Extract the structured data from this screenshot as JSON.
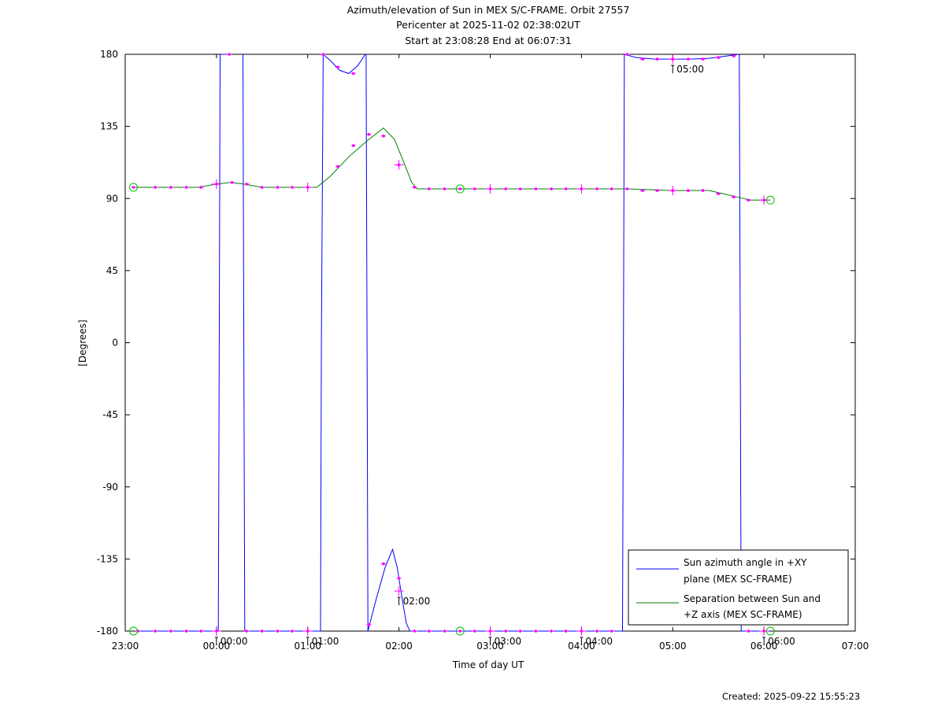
{
  "chart_data": {
    "type": "line",
    "title": "Azimuth/elevation of Sun in MEX S/C-FRAME.  Orbit 27557",
    "subtitle_1": "Pericenter at 2025-11-02 02:38:02UT",
    "subtitle_2": "Start at 23:08:28 End at 06:07:31",
    "xlabel": "Time of day UT",
    "ylabel": "[Degrees]",
    "x_unit": "hours since 23:00 UT",
    "xlim": [
      0,
      8
    ],
    "ylim": [
      -180,
      180
    ],
    "x_ticks": [
      {
        "v": 0,
        "label": "23:00"
      },
      {
        "v": 1,
        "label": "00:00"
      },
      {
        "v": 2,
        "label": "01:00"
      },
      {
        "v": 3,
        "label": "02:00"
      },
      {
        "v": 4,
        "label": "03:00"
      },
      {
        "v": 5,
        "label": "04:00"
      },
      {
        "v": 6,
        "label": "05:00"
      },
      {
        "v": 7,
        "label": "06:00"
      },
      {
        "v": 8,
        "label": "07:00"
      }
    ],
    "y_ticks": [
      {
        "v": 180,
        "label": "180"
      },
      {
        "v": 135,
        "label": "135"
      },
      {
        "v": 90,
        "label": "90"
      },
      {
        "v": 45,
        "label": "45"
      },
      {
        "v": 0,
        "label": "0"
      },
      {
        "v": -45,
        "label": "-45"
      },
      {
        "v": -90,
        "label": "-90"
      },
      {
        "v": -135,
        "label": "-135"
      },
      {
        "v": -180,
        "label": "-180"
      }
    ],
    "legend_position": "bottom-right",
    "series": [
      {
        "name": "Sun azimuth angle in +XY plane (MEX SC-FRAME)",
        "legend_lines": [
          "Sun azimuth angle in +XY",
          "plane (MEX SC-FRAME)"
        ],
        "color": "#0000ff",
        "segments": [
          [
            [
              0.14,
              -180
            ],
            [
              0.5,
              -180
            ],
            [
              0.9,
              -180
            ],
            [
              1.02,
              -180
            ],
            [
              1.03,
              0
            ],
            [
              1.04,
              180
            ],
            [
              1.1,
              180
            ],
            [
              1.14,
              180
            ]
          ],
          [
            [
              1.29,
              180
            ],
            [
              1.3,
              0
            ],
            [
              1.31,
              -180
            ],
            [
              1.6,
              -180
            ],
            [
              2.0,
              -180
            ],
            [
              2.14,
              -180
            ],
            [
              2.15,
              0
            ],
            [
              2.17,
              180
            ],
            [
              2.25,
              176
            ],
            [
              2.35,
              170
            ],
            [
              2.45,
              168
            ],
            [
              2.55,
              173
            ],
            [
              2.63,
              180
            ]
          ],
          [
            [
              2.64,
              180
            ],
            [
              2.65,
              0
            ],
            [
              2.66,
              -180
            ],
            [
              2.75,
              -160
            ],
            [
              2.85,
              -140
            ],
            [
              2.93,
              -129
            ],
            [
              2.98,
              -140
            ],
            [
              3.03,
              -158
            ],
            [
              3.08,
              -175
            ],
            [
              3.12,
              -180
            ],
            [
              3.6,
              -180
            ],
            [
              4.5,
              -180
            ],
            [
              5.2,
              -180
            ],
            [
              5.45,
              -180
            ],
            [
              5.46,
              0
            ],
            [
              5.47,
              180
            ],
            [
              5.6,
              178
            ],
            [
              5.8,
              177
            ],
            [
              6.0,
              177
            ],
            [
              6.2,
              177
            ],
            [
              6.4,
              177.5
            ],
            [
              6.6,
              179
            ],
            [
              6.72,
              180
            ]
          ],
          [
            [
              6.73,
              180
            ],
            [
              6.74,
              0
            ],
            [
              6.75,
              -180
            ],
            [
              6.9,
              -180
            ],
            [
              7.07,
              -180
            ]
          ]
        ],
        "markers": [
          [
            0.14,
            -180
          ],
          [
            0.33,
            -180
          ],
          [
            0.5,
            -180
          ],
          [
            0.67,
            -180
          ],
          [
            0.83,
            -180
          ],
          [
            1.0,
            -180
          ],
          [
            1.14,
            180
          ],
          [
            1.33,
            -180
          ],
          [
            1.5,
            -180
          ],
          [
            1.67,
            -180
          ],
          [
            1.83,
            -180
          ],
          [
            2.0,
            -180
          ],
          [
            2.17,
            180
          ],
          [
            2.33,
            172
          ],
          [
            2.5,
            168
          ],
          [
            2.67,
            -176
          ],
          [
            2.83,
            -138
          ],
          [
            3.0,
            -147
          ],
          [
            3.17,
            -180
          ],
          [
            3.33,
            -180
          ],
          [
            3.5,
            -180
          ],
          [
            3.67,
            -180
          ],
          [
            3.83,
            -180
          ],
          [
            4.0,
            -180
          ],
          [
            4.17,
            -180
          ],
          [
            4.33,
            -180
          ],
          [
            4.5,
            -180
          ],
          [
            4.67,
            -180
          ],
          [
            4.83,
            -180
          ],
          [
            5.0,
            -180
          ],
          [
            5.17,
            -180
          ],
          [
            5.33,
            -180
          ],
          [
            5.5,
            180
          ],
          [
            5.67,
            177
          ],
          [
            5.83,
            177
          ],
          [
            6.0,
            177
          ],
          [
            6.17,
            177
          ],
          [
            6.33,
            177
          ],
          [
            6.5,
            178
          ],
          [
            6.67,
            179
          ],
          [
            6.83,
            -180
          ],
          [
            7.0,
            -180
          ]
        ]
      },
      {
        "name": "Separation between Sun and +Z axis (MEX SC-FRAME)",
        "legend_lines": [
          "Separation between Sun and",
          "+Z axis (MEX SC-FRAME)"
        ],
        "color": "#008000",
        "segments": [
          [
            [
              0.09,
              97
            ],
            [
              0.5,
              97
            ],
            [
              0.8,
              97
            ],
            [
              1.0,
              99
            ],
            [
              1.15,
              100
            ],
            [
              1.3,
              99
            ],
            [
              1.5,
              97
            ],
            [
              1.8,
              97
            ],
            [
              2.1,
              97
            ],
            [
              2.25,
              104
            ],
            [
              2.45,
              116
            ],
            [
              2.65,
              126
            ],
            [
              2.83,
              134
            ],
            [
              2.95,
              127
            ],
            [
              3.05,
              113
            ],
            [
              3.14,
              100
            ],
            [
              3.2,
              96
            ],
            [
              3.5,
              96
            ],
            [
              4.0,
              96
            ],
            [
              4.5,
              96
            ],
            [
              5.0,
              96
            ],
            [
              5.5,
              96
            ],
            [
              6.0,
              95
            ],
            [
              6.2,
              95
            ],
            [
              6.4,
              95
            ],
            [
              6.55,
              93
            ],
            [
              6.7,
              91
            ],
            [
              6.85,
              89
            ],
            [
              7.0,
              89
            ],
            [
              7.07,
              89
            ]
          ]
        ],
        "markers": [
          [
            0.09,
            97
          ],
          [
            0.33,
            97
          ],
          [
            0.5,
            97
          ],
          [
            0.67,
            97
          ],
          [
            0.83,
            97
          ],
          [
            1.0,
            99
          ],
          [
            1.17,
            100
          ],
          [
            1.33,
            99
          ],
          [
            1.5,
            97
          ],
          [
            1.67,
            97
          ],
          [
            1.83,
            97
          ],
          [
            2.0,
            97
          ],
          [
            2.33,
            110
          ],
          [
            2.5,
            123
          ],
          [
            2.67,
            130
          ],
          [
            2.83,
            129
          ],
          [
            3.0,
            111
          ],
          [
            3.17,
            97
          ],
          [
            3.33,
            96
          ],
          [
            3.5,
            96
          ],
          [
            3.67,
            96
          ],
          [
            3.83,
            96
          ],
          [
            4.0,
            96
          ],
          [
            4.17,
            96
          ],
          [
            4.33,
            96
          ],
          [
            4.5,
            96
          ],
          [
            4.67,
            96
          ],
          [
            4.83,
            96
          ],
          [
            5.0,
            96
          ],
          [
            5.17,
            96
          ],
          [
            5.33,
            96
          ],
          [
            5.5,
            96
          ],
          [
            5.67,
            95
          ],
          [
            5.83,
            95
          ],
          [
            6.0,
            95
          ],
          [
            6.17,
            95
          ],
          [
            6.33,
            95
          ],
          [
            6.5,
            93
          ],
          [
            6.67,
            91
          ],
          [
            6.83,
            89
          ],
          [
            7.0,
            89
          ]
        ]
      }
    ],
    "hour_crosses": [
      [
        1.0,
        99
      ],
      [
        2.0,
        97
      ],
      [
        3.0,
        111
      ],
      [
        4.0,
        96
      ],
      [
        5.0,
        96
      ],
      [
        6.0,
        95
      ],
      [
        7.0,
        89
      ],
      [
        1.0,
        -180
      ],
      [
        2.0,
        -180
      ],
      [
        3.0,
        -155
      ],
      [
        4.0,
        -180
      ],
      [
        5.0,
        -180
      ],
      [
        6.0,
        177
      ],
      [
        7.0,
        -180
      ]
    ],
    "start_end_circles": [
      [
        0.09,
        97
      ],
      [
        3.67,
        96
      ],
      [
        7.07,
        89
      ],
      [
        0.09,
        -180
      ],
      [
        3.67,
        -180
      ],
      [
        7.07,
        -180
      ]
    ],
    "time_annotations": [
      {
        "x": 1.0,
        "y": -180,
        "label": "00:00"
      },
      {
        "x": 2.0,
        "y": -180,
        "label": "01:00"
      },
      {
        "x": 3.0,
        "y": -155,
        "label": "02:00"
      },
      {
        "x": 4.0,
        "y": -180,
        "label": "03:00"
      },
      {
        "x": 5.0,
        "y": -180,
        "label": "04:00"
      },
      {
        "x": 6.0,
        "y": 177,
        "label": "05:00"
      },
      {
        "x": 7.0,
        "y": -180,
        "label": "06:00"
      }
    ],
    "colors": {
      "marker": "#ff00ff",
      "circle": "#00c000",
      "axis": "#000000"
    }
  },
  "footer": {
    "created": "Created: 2025-09-22 15:55:23"
  }
}
